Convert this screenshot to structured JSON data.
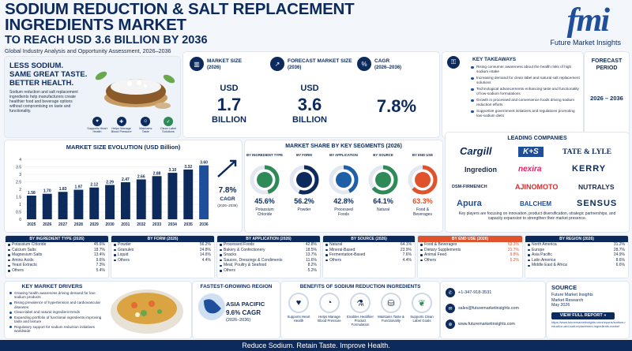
{
  "header": {
    "title_line1": "SODIUM REDUCTION & SALT REPLACEMENT",
    "title_line2": "INGREDIENTS MARKET",
    "title_line3": "TO REACH USD 3.6 BILLION BY 2036",
    "subtitle": "Global Industry Analysis and Opportunity Assessment, 2026–2036",
    "logo_text": "Future Market Insights",
    "logo_mark": "fmi"
  },
  "hero": {
    "headline1": "LESS SODIUM.",
    "headline2": "SAME GREAT TASTE.",
    "headline3": "BETTER HEALTH.",
    "body": "Sodium reduction and salt replacement ingredients help manufacturers create healthier food and beverage options without compromising on taste and functionality.",
    "badges": [
      "Supports Heart Health",
      "Helps Manage Blood Pressure",
      "Maintains Taste",
      "Clean Label Solutions"
    ]
  },
  "stats": {
    "market_size_label": "MARKET SIZE",
    "market_size_year": "(2026)",
    "market_size_currency": "USD",
    "market_size_value": "1.7",
    "market_size_unit": "BILLION",
    "forecast_label": "FORECAST MARKET SIZE",
    "forecast_year": "(2036)",
    "forecast_currency": "USD",
    "forecast_value": "3.6",
    "forecast_unit": "BILLION",
    "cagr_label": "CAGR",
    "cagr_period": "(2026–2036)",
    "cagr_value": "7.8%"
  },
  "takeaways": {
    "title": "KEY TAKEAWAYS",
    "items": [
      "Rising consumer awareness about the health risks of high sodium intake",
      "Increasing demand for clean label and natural salt replacement solutions",
      "Technological advancements enhancing taste and functionality of low-sodium formulations",
      "Growth in processed and convenience foods driving sodium reduction efforts",
      "Supportive government initiatives and regulations promoting low-sodium diets"
    ]
  },
  "forecast_period": {
    "label1": "FORECAST",
    "label2": "PERIOD",
    "value": "2026 – 2036"
  },
  "chart_data": [
    {
      "type": "bar",
      "title": "MARKET SIZE EVOLUTION (USD Billion)",
      "categories": [
        "2025",
        "2026",
        "2027",
        "2028",
        "2029",
        "2030",
        "2031",
        "2032",
        "2033",
        "2034",
        "2035",
        "2036"
      ],
      "values": [
        1.58,
        1.7,
        1.83,
        1.97,
        2.12,
        2.29,
        2.47,
        2.66,
        2.88,
        3.1,
        3.32,
        3.6
      ],
      "ylim": [
        0,
        4
      ],
      "yticks": [
        "0",
        "0.5",
        "1",
        "1.5",
        "2",
        "2.5",
        "3",
        "3.5",
        "4"
      ],
      "cagr_value": "7.8%",
      "cagr_label": "CAGR",
      "cagr_period": "(2026–2036)"
    },
    {
      "type": "pie",
      "title": "MARKET SHARE BY KEY SEGMENTS (2026)",
      "segments": [
        {
          "category": "BY INGREDIENT TYPE",
          "value": 45.6,
          "value_label": "45.6%",
          "label": "Potassium Chloride",
          "color": "#2e8b57"
        },
        {
          "category": "BY FORM",
          "value": 56.2,
          "value_label": "56.2%",
          "label": "Powder",
          "color": "#0c2a5b"
        },
        {
          "category": "BY APPLICATION",
          "value": 42.8,
          "value_label": "42.8%",
          "label": "Processed Foods",
          "color": "#1f5fa8"
        },
        {
          "category": "BY SOURCE",
          "value": 64.1,
          "value_label": "64.1%",
          "label": "Natural",
          "color": "#2e8b57"
        },
        {
          "category": "BY END USE",
          "value": 63.3,
          "value_label": "63.3%",
          "label": "Food & Beverages",
          "color": "#e0522c"
        }
      ]
    }
  ],
  "companies": {
    "title": "LEADING COMPANIES",
    "names": [
      "Cargill",
      "K+S",
      "TATE & LYLE",
      "Ingredion",
      "nexira",
      "KERRY",
      "DSM-FIRMENICH",
      "AJINOMOTO",
      "NUTRALYS",
      "Apura",
      "BALCHEM",
      "SENSUS"
    ],
    "note": "Key players are focusing on innovation, product diversification, strategic partnerships, and capacity expansion to strengthen their market presence."
  },
  "segments": [
    {
      "title": "BY INGREDIENT TYPE (2026)",
      "color": "#0c2a5b",
      "rows": [
        [
          "Potassium Chloride",
          "45.6%"
        ],
        [
          "Calcium Salts",
          "18.7%"
        ],
        [
          "Magnesium Salts",
          "13.4%"
        ],
        [
          "Amino Acids",
          "9.6%"
        ],
        [
          "Yeast Extracts",
          "7.3%"
        ],
        [
          "Others",
          "5.4%"
        ]
      ]
    },
    {
      "title": "BY FORM (2026)",
      "color": "#0c2a5b",
      "rows": [
        [
          "Powder",
          "56.2%"
        ],
        [
          "Granules",
          "24.8%"
        ],
        [
          "Liquid",
          "14.6%"
        ],
        [
          "Others",
          "4.4%"
        ]
      ]
    },
    {
      "title": "BY APPLICATION (2026)",
      "color": "#0c2a5b",
      "rows": [
        [
          "Processed Foods",
          "42.8%"
        ],
        [
          "Bakery & Confectionery",
          "18.5%"
        ],
        [
          "Snacks",
          "13.7%"
        ],
        [
          "Sauces, Dressings & Condiments",
          "11.6%"
        ],
        [
          "Meat, Poultry & Seafood",
          "8.2%"
        ],
        [
          "Others",
          "5.2%"
        ]
      ]
    },
    {
      "title": "BY SOURCE (2026)",
      "color": "#0c2a5b",
      "rows": [
        [
          "Natural",
          "64.1%"
        ],
        [
          "Mineral-Based",
          "23.9%"
        ],
        [
          "Fermentation-Based",
          "7.6%"
        ],
        [
          "Others",
          "4.4%"
        ]
      ]
    },
    {
      "title": "BY END USE (2026)",
      "color": "#e0522c",
      "rows": [
        [
          "Food & Beverages",
          "63.3%"
        ],
        [
          "Dietary Supplements",
          "21.7%"
        ],
        [
          "Animal Feed",
          "9.8%"
        ],
        [
          "Others",
          "5.2%"
        ]
      ]
    },
    {
      "title": "BY REGION (2026)",
      "color": "#0c2a5b",
      "rows": [
        [
          "North America",
          "31.2%"
        ],
        [
          "Europe",
          "28.7%"
        ],
        [
          "Asia Pacific",
          "24.9%"
        ],
        [
          "Latin America",
          "8.6%"
        ],
        [
          "Middle East & Africa",
          "6.6%"
        ]
      ]
    }
  ],
  "drivers": {
    "title": "KEY MARKET DRIVERS",
    "items": [
      "Growing health awareness driving demand for low-sodium products",
      "Rising prevalence of hypertension and cardiovascular diseases",
      "Clean-label and natural ingredient trends",
      "Expanding portfolio of functional ingredients improving taste and texture",
      "Regulatory support for sodium reduction initiatives worldwide"
    ]
  },
  "fastest": {
    "title": "FASTEST-GROWING REGION",
    "region": "ASIA PACIFIC",
    "cagr": "9.6% CAGR",
    "period": "(2026–2036)"
  },
  "benefits": {
    "title": "BENEFITS OF SODIUM REDUCTION INGREDIENTS",
    "items": [
      "Supports Heart Health",
      "Helps Manage Blood Pressure",
      "Enables Healthier Product Formulation",
      "Maintains Taste & Functionality",
      "Supports Clean Label Goals"
    ]
  },
  "contact": {
    "phone": "+1-347-918-3531",
    "email": "sales@futuremarketinsights.com",
    "web": "www.futuremarketinsights.com"
  },
  "source": {
    "title": "SOURCE",
    "line1": "Future Market Insights",
    "line2": "Market Research",
    "date": "May 2026",
    "button": "VIEW FULL REPORT »",
    "url": "https://www.futuremarketinsights.com/reports/sodium-reduction-and-salt-replacement-ingredients-market"
  },
  "footer": {
    "tagline": "Reduce Sodium. Retain Taste. Improve Health."
  }
}
